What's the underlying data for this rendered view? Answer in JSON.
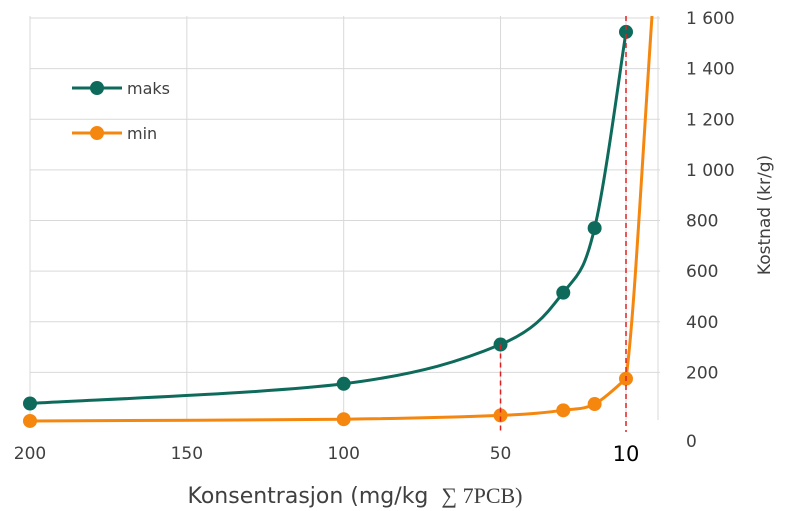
{
  "chart_data": {
    "type": "line",
    "xlabel": "Konsentrasjon (mg/kg",
    "xlabel_suffix": "∑ 7PCB)",
    "ylabel": "Kostnad (kr/g)",
    "x_axis": {
      "reversed": true,
      "range": [
        200,
        10
      ],
      "ticks": [
        "200",
        "150",
        "100",
        "50",
        "10"
      ],
      "highlight_tick": "10"
    },
    "y_axis": {
      "position": "right",
      "range": [
        0,
        1600
      ],
      "ticks": [
        "0",
        "200",
        "400",
        "600",
        "800",
        "1 000",
        "1 200",
        "1 400",
        "1 600"
      ]
    },
    "grid": true,
    "legend": {
      "placement": "top-left"
    },
    "reference_lines": [
      {
        "x": 50,
        "style": "dashed",
        "color": "#e02020"
      },
      {
        "x": 10,
        "style": "dashed",
        "color": "#e02020"
      }
    ],
    "series": [
      {
        "name": "maks",
        "color": "#0e6b5c",
        "points": [
          [
            200,
            77
          ],
          [
            100,
            155
          ],
          [
            50,
            310
          ],
          [
            30,
            515
          ],
          [
            20,
            770
          ],
          [
            10,
            1545
          ]
        ]
      },
      {
        "name": "min",
        "color": "#f5870f",
        "points": [
          [
            200,
            8
          ],
          [
            100,
            15
          ],
          [
            50,
            30
          ],
          [
            30,
            50
          ],
          [
            20,
            75
          ],
          [
            10,
            175
          ]
        ]
      }
    ]
  }
}
